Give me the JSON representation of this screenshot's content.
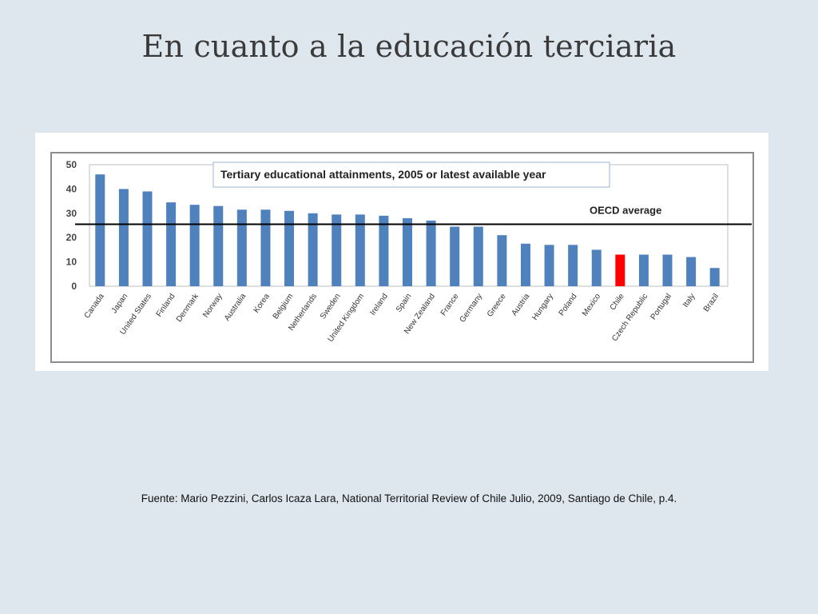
{
  "slide": {
    "title": "En cuanto a la educación terciaria",
    "source": "Fuente: Mario Pezzini, Carlos Icaza Lara, National Territorial Review of Chile Julio, 2009, Santiago de Chile, p.4."
  },
  "chart_data": {
    "type": "bar",
    "title": "Tertiary educational attainments, 2005 or latest available year",
    "xlabel": "",
    "ylabel": "",
    "ylim": [
      0,
      50
    ],
    "yticks": [
      0,
      10,
      20,
      30,
      40,
      50
    ],
    "grid": false,
    "legend": "none",
    "categories": [
      "Canada",
      "Japan",
      "United States",
      "Finland",
      "Denmark",
      "Norway",
      "Australia",
      "Korea",
      "Belgium",
      "Netherlands",
      "Sweden",
      "United Kingdom",
      "Ireland",
      "Spain",
      "New Zealand",
      "France",
      "Germany",
      "Greece",
      "Austria",
      "Hungary",
      "Poland",
      "Mexico",
      "Chile",
      "Czech Republic",
      "Portugal",
      "Italy",
      "Brazil"
    ],
    "values": [
      46,
      40,
      39,
      34.5,
      33.5,
      33,
      31.5,
      31.5,
      31,
      30,
      29.5,
      29.5,
      29,
      28,
      27,
      24.5,
      24.5,
      21,
      17.5,
      17,
      17,
      15,
      13,
      13,
      13,
      12,
      7.5
    ],
    "bar_color": "#4f81bd",
    "highlight": {
      "category": "Chile",
      "color": "#ff0000"
    },
    "reference_line": {
      "label": "OECD average",
      "value": 25.5,
      "color": "#000000"
    }
  }
}
